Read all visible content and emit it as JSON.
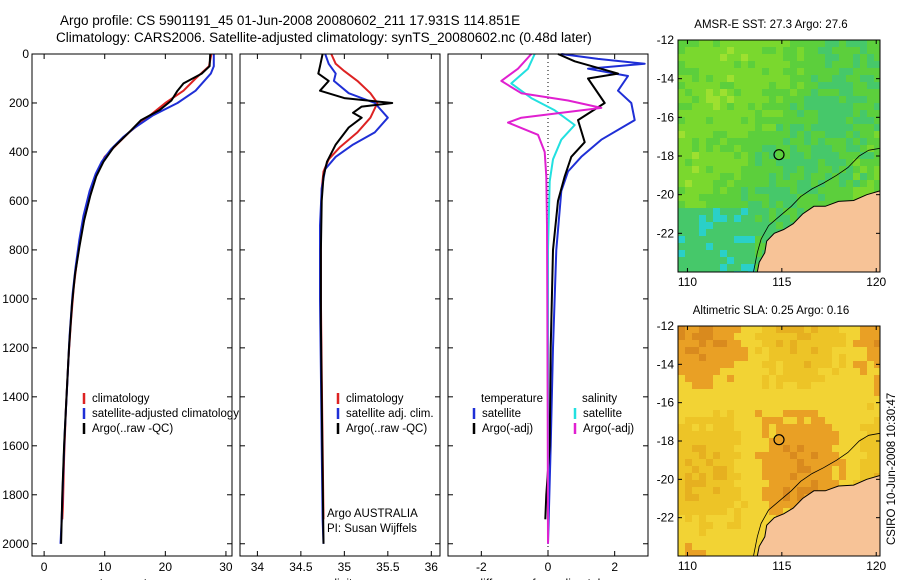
{
  "header": {
    "title_line1": "Argo profile: CS 5901191_45 01-Jun-2008 20080602_211 17.931S 114.851E",
    "title_line2": "Climatology: CARS2006. Satellite-adjusted climatology: synTS_20080602.nc (0.48d later)"
  },
  "side_text": "CSIRO 10-Jun-2008 10:30:47",
  "colors": {
    "climatology": "#dd2222",
    "satellite": "#1f2fd6",
    "argo": "#000000",
    "sal_satellite": "#22e0e0",
    "sal_argo": "#e020d0",
    "land": "#f7c397",
    "coast": "#000000"
  },
  "chart_data": [
    {
      "type": "line",
      "name": "temperature-profile",
      "xlabel": "temperature",
      "xlim": [
        -2,
        31
      ],
      "ylim": [
        2050,
        0
      ],
      "y_reversed": true,
      "xticks": [
        0,
        10,
        20,
        30
      ],
      "yticks": [
        0,
        200,
        400,
        600,
        800,
        1000,
        1200,
        1400,
        1600,
        1800,
        2000
      ],
      "legend": {
        "placement": "lower-middle",
        "entries": [
          "climatology",
          "satellite-adjusted climatology",
          "Argo(..raw -QC)"
        ]
      },
      "series": [
        {
          "name": "climatology",
          "color": "climatology",
          "points": [
            [
              27.6,
              0
            ],
            [
              27.2,
              50
            ],
            [
              25,
              100
            ],
            [
              23,
              150
            ],
            [
              20,
              200
            ],
            [
              17,
              260
            ],
            [
              14,
              320
            ],
            [
              12,
              370
            ],
            [
              10,
              420
            ],
            [
              8.8,
              480
            ],
            [
              7.8,
              550
            ],
            [
              6.8,
              650
            ],
            [
              6,
              750
            ],
            [
              5.4,
              850
            ],
            [
              4.9,
              950
            ],
            [
              4.4,
              1100
            ],
            [
              4,
              1250
            ],
            [
              3.6,
              1450
            ],
            [
              3.3,
              1650
            ],
            [
              3.1,
              1850
            ],
            [
              3,
              1900
            ]
          ]
        },
        {
          "name": "satellite-adjusted climatology",
          "color": "satellite",
          "points": [
            [
              28,
              0
            ],
            [
              28,
              50
            ],
            [
              27.5,
              80
            ],
            [
              25,
              150
            ],
            [
              22,
              200
            ],
            [
              18,
              250
            ],
            [
              15,
              300
            ],
            [
              13,
              340
            ],
            [
              11,
              390
            ],
            [
              9.5,
              440
            ],
            [
              8.5,
              490
            ],
            [
              7.5,
              560
            ],
            [
              6.5,
              660
            ],
            [
              5.8,
              760
            ],
            [
              5.2,
              870
            ],
            [
              4.7,
              980
            ],
            [
              4.2,
              1150
            ],
            [
              3.8,
              1350
            ],
            [
              3.4,
              1550
            ],
            [
              3.1,
              1750
            ],
            [
              2.9,
              1900
            ],
            [
              2.7,
              2000
            ]
          ]
        },
        {
          "name": "Argo(..raw -QC)",
          "color": "argo",
          "points": [
            [
              27.4,
              0
            ],
            [
              27.3,
              50
            ],
            [
              26,
              80
            ],
            [
              23,
              120
            ],
            [
              22,
              150
            ],
            [
              21,
              190
            ],
            [
              19,
              230
            ],
            [
              16,
              270
            ],
            [
              14,
              320
            ],
            [
              11.5,
              380
            ],
            [
              9.8,
              440
            ],
            [
              8.6,
              500
            ],
            [
              7.6,
              580
            ],
            [
              6.6,
              680
            ],
            [
              5.8,
              790
            ],
            [
              5.1,
              900
            ],
            [
              4.6,
              1020
            ],
            [
              4.1,
              1200
            ],
            [
              3.7,
              1400
            ],
            [
              3.3,
              1600
            ],
            [
              3,
              1800
            ],
            [
              2.8,
              2000
            ]
          ]
        }
      ]
    },
    {
      "type": "line",
      "name": "salinity-profile",
      "xlabel": "salinity",
      "xlim": [
        33.8,
        36.1
      ],
      "ylim": [
        2050,
        0
      ],
      "y_reversed": true,
      "xticks": [
        34,
        34.5,
        35,
        35.5,
        36
      ],
      "legend": {
        "placement": "lower-middle",
        "entries": [
          "climatology",
          "satellite adj. clim.",
          "Argo(..raw -QC)"
        ]
      },
      "annotation_lines": [
        "Argo AUSTRALIA",
        "PI: Susan Wijffels"
      ],
      "series": [
        {
          "name": "climatology",
          "color": "climatology",
          "points": [
            [
              34.85,
              0
            ],
            [
              34.9,
              40
            ],
            [
              35,
              70
            ],
            [
              35.15,
              110
            ],
            [
              35.3,
              160
            ],
            [
              35.38,
              200
            ],
            [
              35.3,
              260
            ],
            [
              35.15,
              320
            ],
            [
              34.95,
              380
            ],
            [
              34.82,
              430
            ],
            [
              34.76,
              480
            ],
            [
              34.74,
              550
            ],
            [
              34.73,
              700
            ],
            [
              34.73,
              1000
            ],
            [
              34.74,
              1300
            ],
            [
              34.75,
              1600
            ],
            [
              34.76,
              1900
            ]
          ]
        },
        {
          "name": "satellite adj. clim.",
          "color": "satellite",
          "points": [
            [
              34.78,
              0
            ],
            [
              34.82,
              40
            ],
            [
              34.9,
              80
            ],
            [
              34.88,
              110
            ],
            [
              35.05,
              160
            ],
            [
              35.35,
              200
            ],
            [
              35.5,
              260
            ],
            [
              35.35,
              320
            ],
            [
              35.1,
              370
            ],
            [
              34.9,
              420
            ],
            [
              34.78,
              470
            ],
            [
              34.74,
              550
            ],
            [
              34.72,
              700
            ],
            [
              34.72,
              1000
            ],
            [
              34.73,
              1300
            ],
            [
              34.74,
              1600
            ],
            [
              34.75,
              1900
            ],
            [
              34.76,
              2000
            ]
          ]
        },
        {
          "name": "Argo(..raw -QC)",
          "color": "argo",
          "points": [
            [
              34.75,
              0
            ],
            [
              34.72,
              50
            ],
            [
              34.7,
              80
            ],
            [
              34.82,
              110
            ],
            [
              34.72,
              150
            ],
            [
              35.0,
              180
            ],
            [
              35.55,
              200
            ],
            [
              35.2,
              215
            ],
            [
              35.1,
              240
            ],
            [
              35.2,
              260
            ],
            [
              35.05,
              300
            ],
            [
              34.9,
              370
            ],
            [
              34.8,
              440
            ],
            [
              34.76,
              500
            ],
            [
              34.74,
              600
            ],
            [
              34.73,
              800
            ],
            [
              34.73,
              1100
            ],
            [
              34.74,
              1400
            ],
            [
              34.75,
              1700
            ],
            [
              34.76,
              2000
            ]
          ]
        }
      ]
    },
    {
      "type": "line",
      "name": "difference-from-climatology",
      "xlabel": "difference from climatology",
      "xlim": [
        -3,
        3
      ],
      "ylim": [
        2050,
        0
      ],
      "y_reversed": true,
      "xticks": [
        -2,
        0,
        2
      ],
      "legend": {
        "placement": "lower-middle",
        "entries": [
          "temperature",
          "satellite",
          "Argo(-adj)",
          "salinity",
          "satellite",
          "Argo(-adj)"
        ]
      },
      "series": [
        {
          "name": "satellite",
          "group": "temperature",
          "color": "satellite",
          "points": [
            [
              0.4,
              0
            ],
            [
              1.5,
              20
            ],
            [
              2.9,
              40
            ],
            [
              1.2,
              60
            ],
            [
              2.4,
              90
            ],
            [
              2.1,
              150
            ],
            [
              2.5,
              200
            ],
            [
              2.6,
              270
            ],
            [
              1.6,
              350
            ],
            [
              1,
              420
            ],
            [
              0.6,
              480
            ],
            [
              0.4,
              560
            ],
            [
              0.25,
              800
            ],
            [
              0.15,
              1200
            ],
            [
              0.08,
              1600
            ],
            [
              0,
              2000
            ]
          ]
        },
        {
          "name": "Argo(-adj)",
          "group": "temperature",
          "color": "argo",
          "points": [
            [
              0.3,
              0
            ],
            [
              0.8,
              30
            ],
            [
              2.1,
              80
            ],
            [
              1.2,
              100
            ],
            [
              1.7,
              200
            ],
            [
              0.9,
              270
            ],
            [
              1.1,
              360
            ],
            [
              0.7,
              420
            ],
            [
              0.5,
              500
            ],
            [
              0.3,
              600
            ],
            [
              0.15,
              800
            ],
            [
              0.08,
              1200
            ],
            [
              0.05,
              1600
            ],
            [
              -0.05,
              1800
            ],
            [
              -0.08,
              1900
            ]
          ]
        },
        {
          "name": "satellite",
          "group": "salinity",
          "color": "sal_satellite",
          "points": [
            [
              -0.4,
              0
            ],
            [
              -0.6,
              60
            ],
            [
              -1.1,
              120
            ],
            [
              -0.5,
              180
            ],
            [
              0.2,
              230
            ],
            [
              0.8,
              290
            ],
            [
              0.4,
              350
            ],
            [
              0.15,
              430
            ],
            [
              0.05,
              520
            ],
            [
              0,
              800
            ],
            [
              0,
              1200
            ],
            [
              0,
              1600
            ],
            [
              0,
              2000
            ]
          ]
        },
        {
          "name": "Argo(-adj)",
          "group": "salinity",
          "color": "sal_argo",
          "points": [
            [
              -0.5,
              0
            ],
            [
              -0.9,
              60
            ],
            [
              -1.4,
              110
            ],
            [
              -0.8,
              160
            ],
            [
              0.6,
              190
            ],
            [
              1.6,
              220
            ],
            [
              -0.8,
              260
            ],
            [
              -1.2,
              280
            ],
            [
              -0.3,
              330
            ],
            [
              -0.1,
              400
            ],
            [
              -0.05,
              500
            ],
            [
              -0.03,
              700
            ],
            [
              -0.02,
              1000
            ],
            [
              -0.01,
              1500
            ],
            [
              0,
              2000
            ]
          ]
        }
      ]
    },
    {
      "type": "heatmap",
      "name": "sst-map",
      "title": "AMSR-E SST: 27.3 Argo: 27.6",
      "xlim": [
        109.5,
        120.2
      ],
      "ylim": [
        -24,
        -12
      ],
      "xticks": [
        110,
        115,
        120
      ],
      "yticks": [
        -12,
        -14,
        -16,
        -18,
        -20,
        -22
      ],
      "marker": {
        "lon": 114.851,
        "lat": -17.931
      },
      "palette": [
        "#2ad0c8",
        "#46c86a",
        "#5ccf3c",
        "#7ad82e",
        "#9ee030"
      ]
    },
    {
      "type": "heatmap",
      "name": "sla-map",
      "title": "Altimetric SLA: 0.25 Argo: 0.16",
      "xlim": [
        109.5,
        120.2
      ],
      "ylim": [
        -24,
        -12
      ],
      "xticks": [
        110,
        115,
        120
      ],
      "yticks": [
        -12,
        -14,
        -16,
        -18,
        -20,
        -22
      ],
      "marker": {
        "lon": 114.851,
        "lat": -17.931
      },
      "palette": [
        "#e6b020",
        "#edc427",
        "#f2d334",
        "#e9a025",
        "#d98a1e"
      ]
    }
  ]
}
